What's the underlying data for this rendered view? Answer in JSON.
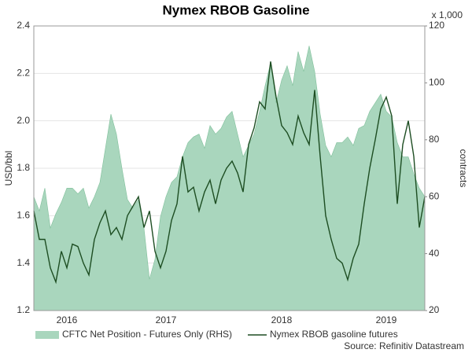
{
  "chart_data": {
    "type": "dual-axis-area-line",
    "title": "Nymex RBOB Gasoline",
    "y_label": "USD/bbl",
    "y2_label": "contracts",
    "y2_unit": "x 1,000",
    "source": "Source: Refinitiv Datastream",
    "categories": [
      null,
      null,
      null,
      null,
      null,
      null,
      "2016",
      null,
      null,
      null,
      null,
      null,
      null,
      null,
      null,
      null,
      null,
      null,
      null,
      null,
      null,
      null,
      null,
      null,
      "2017",
      null,
      null,
      null,
      null,
      null,
      null,
      null,
      null,
      null,
      null,
      null,
      null,
      null,
      null,
      null,
      null,
      null,
      null,
      null,
      null,
      "2018",
      null,
      null,
      null,
      null,
      null,
      null,
      null,
      null,
      null,
      null,
      null,
      null,
      null,
      null,
      null,
      null,
      null,
      null,
      "2019",
      null,
      null,
      null,
      null,
      null,
      null,
      null
    ],
    "ylim": [
      1.2,
      2.4
    ],
    "yticks": [
      1.2,
      1.4,
      1.6,
      1.8,
      {
        "value": 2,
        "label": "2.0"
      },
      2.2,
      2.4
    ],
    "y2lim": [
      20,
      120
    ],
    "y2ticks": [
      20,
      40,
      60,
      80,
      100,
      120
    ],
    "grid": true,
    "series": [
      {
        "name": "CFTC Net Position - Futures Only (RHS)",
        "kind": "area",
        "axis": "y2",
        "color": "#a9d6bd",
        "values": [
          60,
          55,
          63,
          49,
          54,
          58,
          63,
          63,
          61,
          63,
          56,
          60,
          65,
          77,
          89,
          82,
          70,
          59,
          56,
          59,
          49,
          31,
          38,
          53,
          60,
          65,
          67,
          74,
          79,
          81,
          82,
          77,
          85,
          82,
          84,
          88,
          90,
          82,
          74,
          78,
          82,
          90,
          99,
          107,
          93,
          101,
          106,
          99,
          111,
          104,
          113,
          104,
          89,
          78,
          74,
          79,
          79,
          81,
          78,
          84,
          85,
          90,
          93,
          96,
          90,
          88,
          79,
          74,
          74,
          68,
          63,
          60
        ]
      },
      {
        "name": "Nymex RBOB gasoline futures",
        "kind": "line",
        "color": "#1d4d22",
        "values": [
          1.62,
          1.5,
          1.5,
          1.38,
          1.32,
          1.45,
          1.38,
          1.48,
          1.47,
          1.4,
          1.35,
          1.5,
          1.57,
          1.62,
          1.52,
          1.55,
          1.5,
          1.6,
          1.64,
          1.68,
          1.55,
          1.62,
          1.45,
          1.38,
          1.45,
          1.58,
          1.65,
          1.85,
          1.7,
          1.72,
          1.62,
          1.7,
          1.75,
          1.65,
          1.75,
          1.8,
          1.83,
          1.78,
          1.7,
          1.9,
          1.97,
          2.08,
          2.05,
          2.25,
          2.1,
          1.98,
          1.95,
          1.9,
          2.02,
          1.95,
          1.9,
          2.13,
          1.85,
          1.6,
          1.5,
          1.42,
          1.4,
          1.33,
          1.42,
          1.48,
          1.65,
          1.8,
          1.92,
          2.05,
          2.1,
          2.02,
          1.65,
          1.9,
          2.0,
          1.85,
          1.55,
          1.68
        ]
      }
    ]
  }
}
